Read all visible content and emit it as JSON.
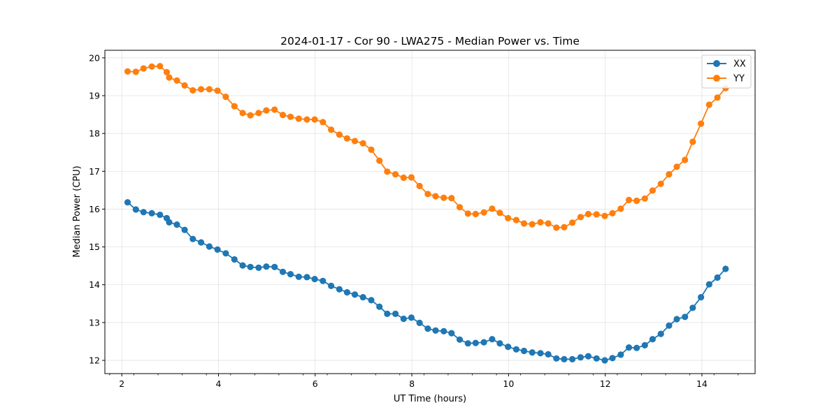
{
  "chart_data": {
    "type": "line",
    "title": "2024-01-17 - Cor 90 - LWA275 - Median Power vs. Time",
    "xlabel": "UT Time (hours)",
    "ylabel": "Median Power (CPU)",
    "xlim": [
      1.65,
      15.1
    ],
    "ylim": [
      11.65,
      20.2
    ],
    "xticks": [
      2,
      4,
      6,
      8,
      10,
      12,
      14
    ],
    "yticks": [
      12,
      13,
      14,
      15,
      16,
      17,
      18,
      19,
      20
    ],
    "grid": true,
    "legend_position": "top-right",
    "marker": "circle",
    "x": [
      2.12,
      2.29,
      2.45,
      2.62,
      2.79,
      2.93,
      2.98,
      3.14,
      3.3,
      3.47,
      3.64,
      3.81,
      3.98,
      4.15,
      4.33,
      4.5,
      4.66,
      4.83,
      4.99,
      5.16,
      5.33,
      5.49,
      5.66,
      5.83,
      5.99,
      6.16,
      6.33,
      6.5,
      6.66,
      6.82,
      6.99,
      7.16,
      7.33,
      7.49,
      7.66,
      7.83,
      7.99,
      8.16,
      8.33,
      8.49,
      8.66,
      8.82,
      8.99,
      9.16,
      9.32,
      9.49,
      9.66,
      9.82,
      9.99,
      10.16,
      10.32,
      10.49,
      10.66,
      10.82,
      10.99,
      11.15,
      11.32,
      11.49,
      11.65,
      11.82,
      11.99,
      12.15,
      12.32,
      12.49,
      12.65,
      12.82,
      12.98,
      13.15,
      13.32,
      13.48,
      13.65,
      13.81,
      13.98,
      14.15,
      14.32,
      14.49
    ],
    "series": [
      {
        "name": "XX",
        "color": "#1f77b4",
        "values": [
          16.18,
          15.99,
          15.92,
          15.89,
          15.85,
          15.76,
          15.65,
          15.59,
          15.45,
          15.21,
          15.12,
          15.01,
          14.93,
          14.83,
          14.67,
          14.51,
          14.47,
          14.45,
          14.48,
          14.47,
          14.34,
          14.28,
          14.21,
          14.2,
          14.15,
          14.1,
          13.97,
          13.88,
          13.8,
          13.74,
          13.67,
          13.59,
          13.42,
          13.23,
          13.23,
          13.1,
          13.13,
          12.99,
          12.84,
          12.79,
          12.77,
          12.72,
          12.55,
          12.45,
          12.46,
          12.48,
          12.56,
          12.45,
          12.36,
          12.29,
          12.25,
          12.21,
          12.19,
          12.16,
          12.05,
          12.03,
          12.03,
          12.08,
          12.11,
          12.05,
          12.0,
          12.06,
          12.15,
          12.34,
          12.33,
          12.4,
          12.56,
          12.7,
          12.92,
          13.09,
          13.15,
          13.39,
          13.67,
          14.01,
          14.19,
          14.42
        ]
      },
      {
        "name": "YY",
        "color": "#ff7f0e",
        "values": [
          19.64,
          19.63,
          19.72,
          19.77,
          19.78,
          19.62,
          19.48,
          19.4,
          19.27,
          19.14,
          19.17,
          19.17,
          19.13,
          18.97,
          18.72,
          18.54,
          18.48,
          18.54,
          18.61,
          18.63,
          18.49,
          18.44,
          18.39,
          18.37,
          18.37,
          18.3,
          18.1,
          17.97,
          17.87,
          17.8,
          17.74,
          17.57,
          17.28,
          16.99,
          16.92,
          16.83,
          16.84,
          16.61,
          16.4,
          16.34,
          16.3,
          16.29,
          16.05,
          15.88,
          15.87,
          15.91,
          16.01,
          15.9,
          15.76,
          15.71,
          15.62,
          15.6,
          15.65,
          15.62,
          15.51,
          15.52,
          15.64,
          15.79,
          15.87,
          15.86,
          15.82,
          15.89,
          16.01,
          16.24,
          16.22,
          16.28,
          16.49,
          16.67,
          16.92,
          17.12,
          17.3,
          17.78,
          18.26,
          18.76,
          18.95,
          19.2
        ]
      }
    ]
  }
}
